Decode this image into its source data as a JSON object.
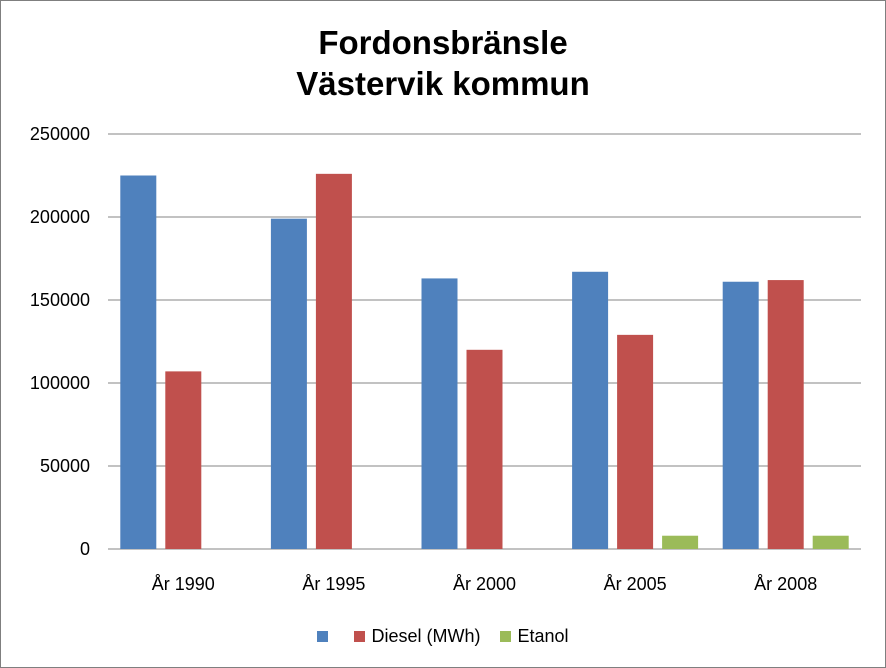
{
  "chart_data": {
    "type": "bar",
    "title_lines": [
      "Fordonsbränsle",
      "Västervik kommun"
    ],
    "categories": [
      "År 1990",
      "År 1995",
      "År 2000",
      "År 2005",
      "År 2008"
    ],
    "series": [
      {
        "name": "",
        "color": "#4f81bd",
        "values": [
          225000,
          199000,
          163000,
          167000,
          161000
        ]
      },
      {
        "name": "Diesel (MWh)",
        "color": "#c0504d",
        "values": [
          107000,
          226000,
          120000,
          129000,
          162000
        ]
      },
      {
        "name": "Etanol",
        "color": "#9bbb59",
        "values": [
          0,
          0,
          0,
          8000,
          8000
        ]
      }
    ],
    "ylim": [
      0,
      250000
    ],
    "yticks": [
      "0",
      "50000",
      "100000",
      "150000",
      "200000",
      "250000"
    ],
    "grid": true,
    "legend_position": "bottom"
  }
}
